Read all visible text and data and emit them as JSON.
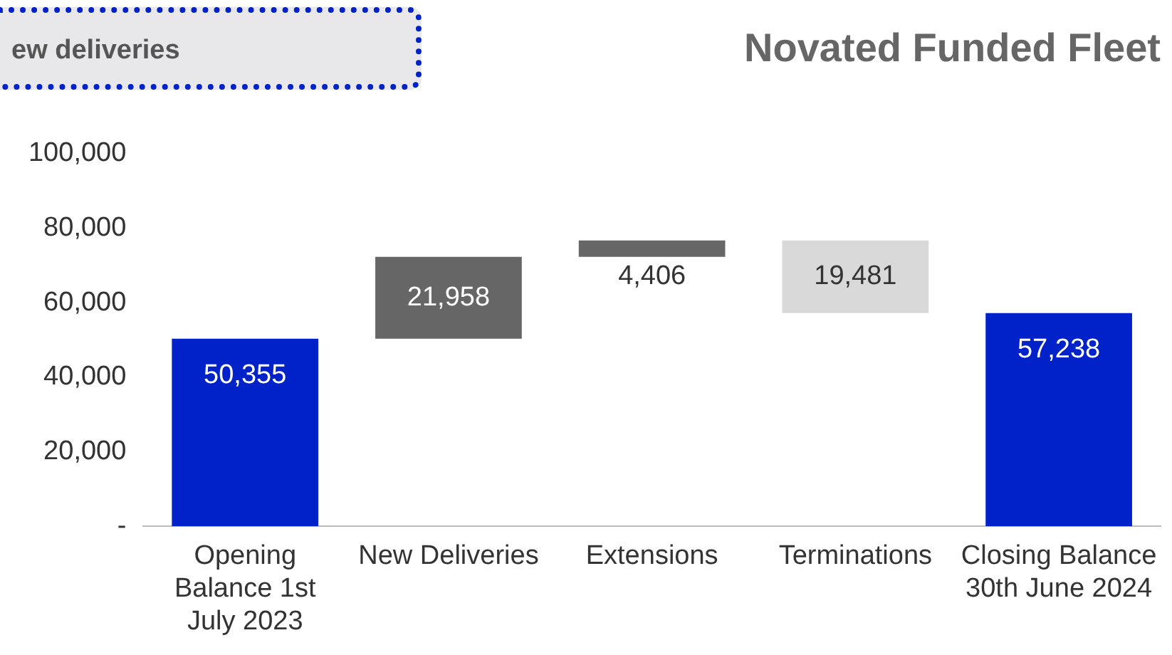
{
  "chart_data": {
    "type": "bar",
    "title": "Novated Funded Fleet",
    "annotations": [
      "ew deliveries"
    ],
    "categories": [
      "Opening Balance 1st July 2023",
      "New Deliveries",
      "Extensions",
      "Terminations",
      "Closing Balance 30th June 2024"
    ],
    "values": [
      50355,
      21958,
      4406,
      19481,
      57238
    ],
    "base": [
      0,
      50355,
      72313,
      57238,
      0
    ],
    "colors": [
      "#0022c8",
      "#666666",
      "#666666",
      "#d9d9d9",
      "#0022c8"
    ],
    "value_labels": [
      "50,355",
      "21,958",
      "4,406",
      "19,481",
      "57,238"
    ],
    "ylim": [
      0,
      100000
    ],
    "yticks": [
      {
        "value": 0,
        "label": "-"
      },
      {
        "value": 20000,
        "label": "20,000"
      },
      {
        "value": 40000,
        "label": "40,000"
      },
      {
        "value": 60000,
        "label": "60,000"
      },
      {
        "value": 80000,
        "label": "80,000"
      },
      {
        "value": 100000,
        "label": "100,000"
      }
    ],
    "grid": false,
    "legend": false
  }
}
